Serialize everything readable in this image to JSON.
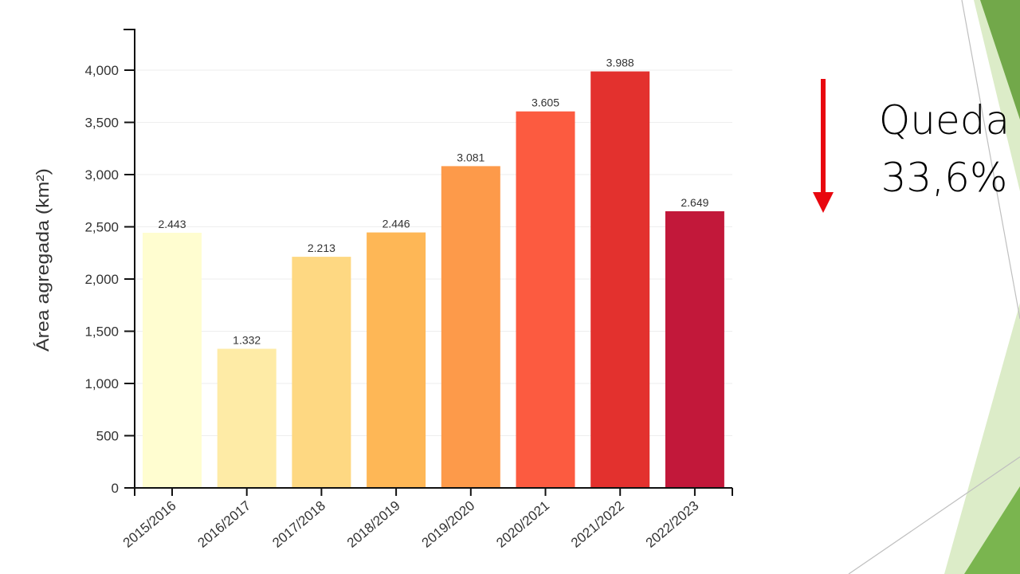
{
  "chart_data": {
    "type": "bar",
    "title": "",
    "xlabel": "",
    "ylabel": "Área agregada (km²)",
    "ylim": [
      0,
      4400
    ],
    "yticks": [
      0,
      500,
      1000,
      1500,
      2000,
      2500,
      3000,
      3500,
      4000
    ],
    "ytick_labels": [
      "0",
      "500",
      "1,000",
      "1,500",
      "2,000",
      "2,500",
      "3,000",
      "3,500",
      "4,000"
    ],
    "grid": "horizontal-light",
    "legend": "none",
    "categories": [
      "2015/2016",
      "2016/2017",
      "2017/2018",
      "2018/2019",
      "2019/2020",
      "2020/2021",
      "2021/2022",
      "2022/2023"
    ],
    "values": [
      2443,
      1332,
      2213,
      2446,
      3081,
      3605,
      3988,
      2649
    ],
    "data_labels": [
      "2.443",
      "1.332",
      "2.213",
      "2.446",
      "3.081",
      "3.605",
      "3.988",
      "2.649"
    ],
    "colors": [
      "#fffdd0",
      "#feeba6",
      "#fed882",
      "#feb756",
      "#fd9a4a",
      "#fc5b40",
      "#e3312e",
      "#c2183a"
    ]
  },
  "annotation": {
    "line1": "Queda",
    "line2": "33,6%",
    "arrow_color": "#e8070f",
    "arrow_direction": "down"
  },
  "theme": {
    "green_dark": "#72a84a",
    "green_light": "#dcecc8",
    "green_mid": "#7ab54f",
    "line_gray": "#bfbfbf"
  }
}
